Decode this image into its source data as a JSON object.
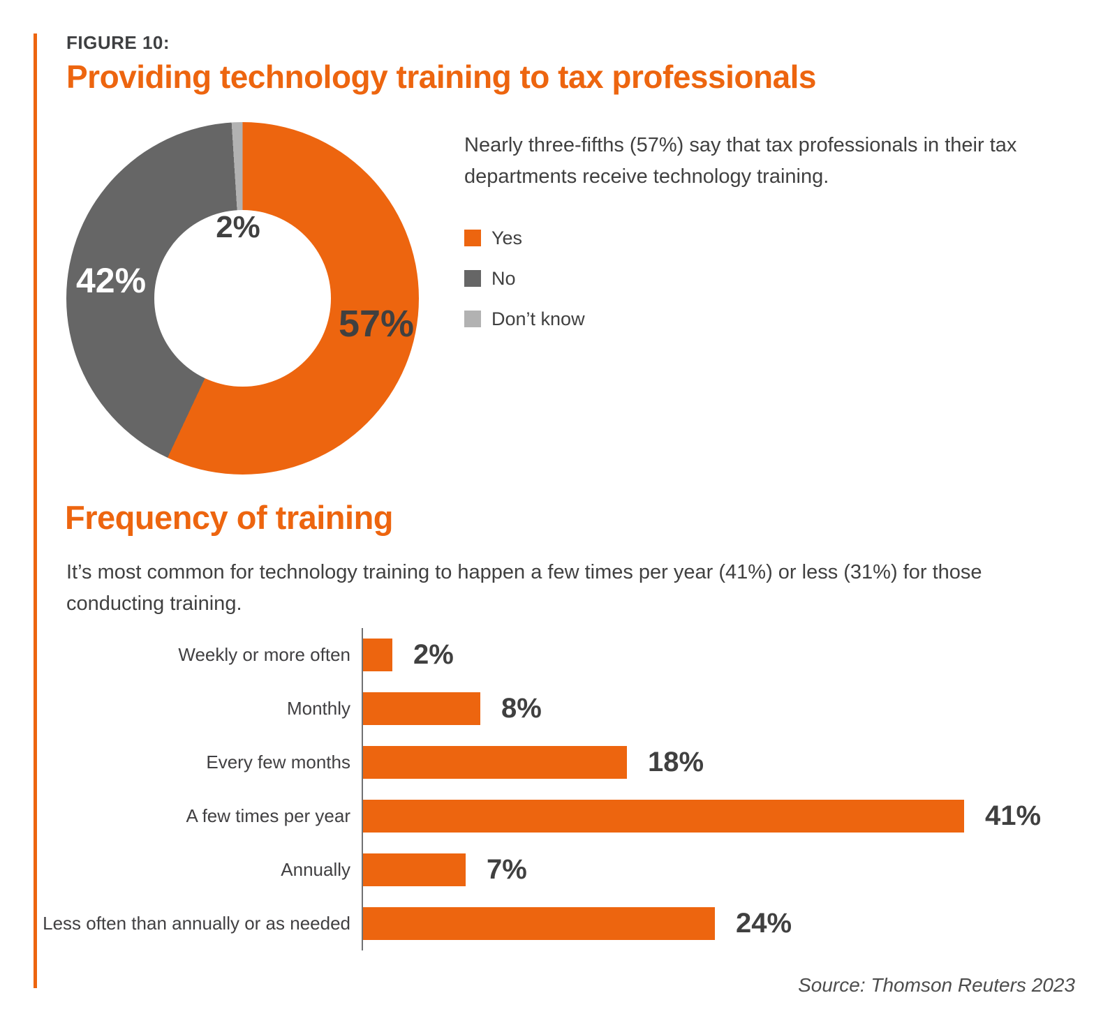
{
  "figure": {
    "eyebrow": "FIGURE 10:",
    "title": "Providing technology training to tax professionals"
  },
  "donut_section": {
    "description": "Nearly three-fifths (57%) say that tax professionals in their tax\ndepartments receive technology training."
  },
  "bar_section": {
    "heading": "Frequency of training",
    "description": "It’s most common for technology training to happen a few times per year (41%) or less (31%) for those\nconducting training."
  },
  "source": "Source: Thomson Reuters 2023",
  "colors": {
    "accent_orange": "#ED650F",
    "no_gray": "#666666",
    "dont_know_gray": "#B2B2B2",
    "text_dark": "#404040",
    "axis_gray": "#707173"
  },
  "chart_data": [
    {
      "type": "pie",
      "subtype": "donut",
      "title": "Providing technology training to tax professionals",
      "slices": [
        {
          "label": "Yes",
          "value": 57,
          "display": "57%",
          "color": "#ED650F"
        },
        {
          "label": "No",
          "value": 42,
          "display": "42%",
          "color": "#666666"
        },
        {
          "label": "Don’t know",
          "value": 2,
          "display": "2%",
          "color": "#B2B2B2"
        }
      ],
      "start_angle_deg": 0,
      "direction": "clockwise",
      "legend_position": "right"
    },
    {
      "type": "bar",
      "orientation": "horizontal",
      "title": "Frequency of training",
      "categories": [
        "Weekly or more often",
        "Monthly",
        "Every few months",
        "A few times per year",
        "Annually",
        "Less often than annually or as needed"
      ],
      "values": [
        2,
        8,
        18,
        41,
        7,
        24
      ],
      "value_suffix": "%",
      "xlim": [
        0,
        43
      ],
      "grid": false,
      "bar_color": "#ED650F",
      "value_labels": "outside-end"
    }
  ]
}
